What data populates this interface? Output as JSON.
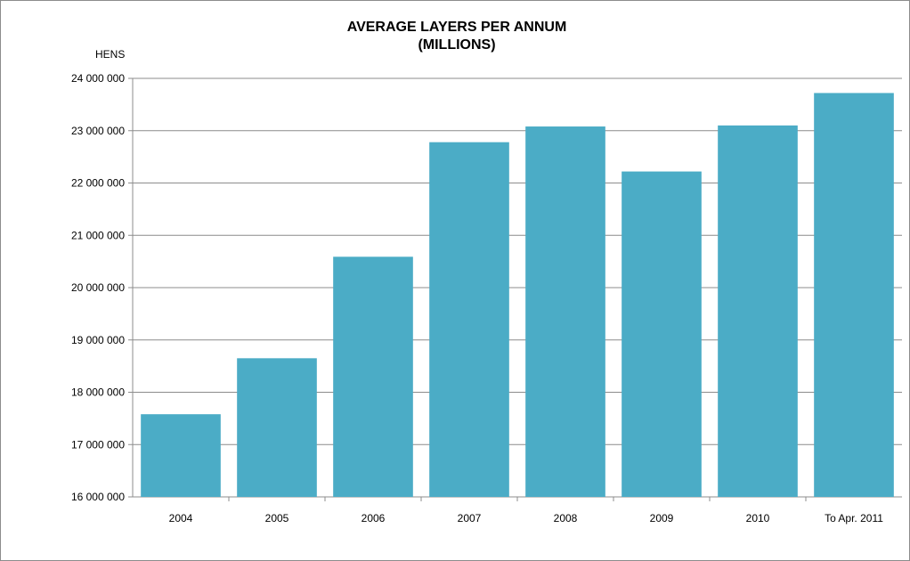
{
  "chart_data": {
    "type": "bar",
    "title": "AVERAGE LAYERS PER ANNUM",
    "subtitle": "(MILLIONS)",
    "ylabel": "HENS",
    "xlabel": "",
    "categories": [
      "2004",
      "2005",
      "2006",
      "2007",
      "2008",
      "2009",
      "2010",
      "To Apr. 2011"
    ],
    "values": [
      17580000,
      18650000,
      20590000,
      22780000,
      23080000,
      22220000,
      23100000,
      23720000
    ],
    "ylim": [
      16000000,
      24000000
    ],
    "yticks": [
      "16 000 000",
      "17 000 000",
      "18 000 000",
      "19 000 000",
      "20 000 000",
      "21 000 000",
      "22 000 000",
      "23 000 000",
      "24 000 000"
    ],
    "grid": true,
    "legend": "none",
    "bar_color": "#4bacc6"
  }
}
